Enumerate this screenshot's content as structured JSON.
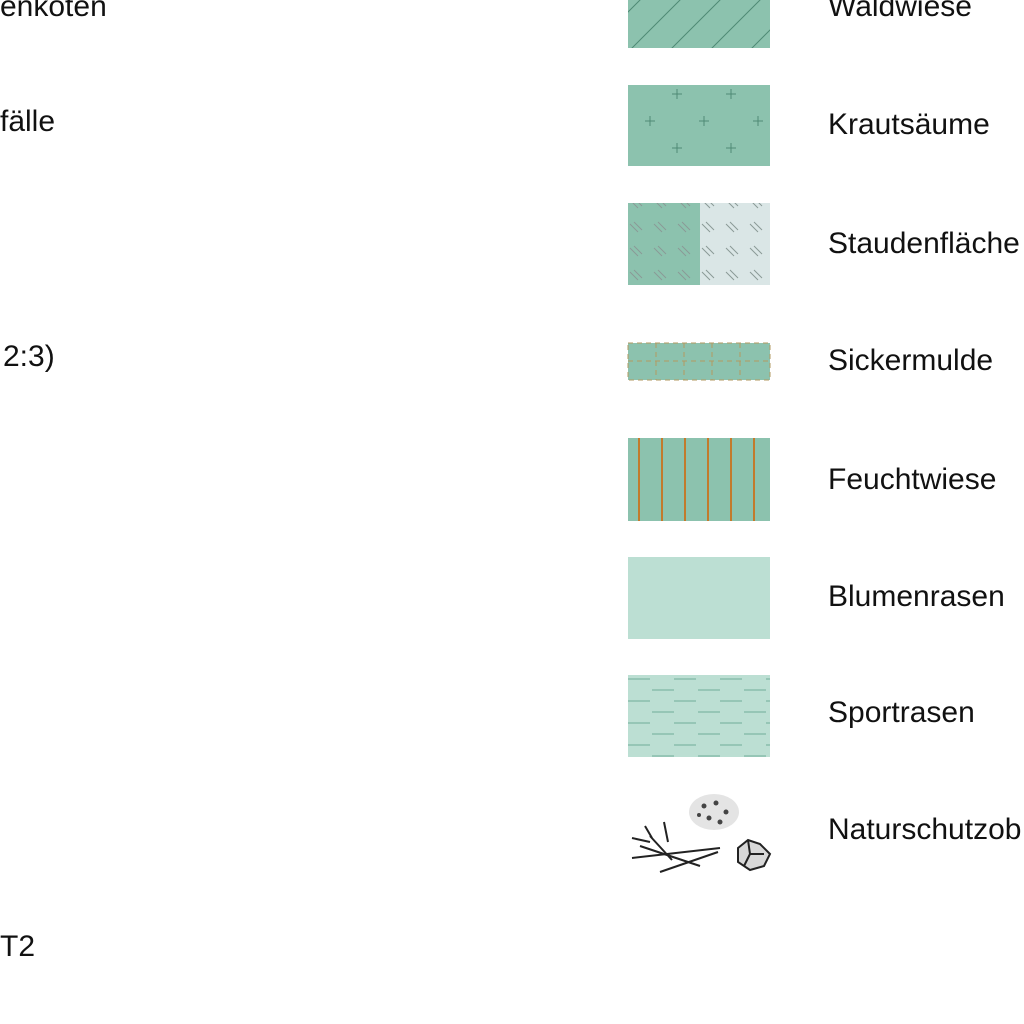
{
  "left_texts": [
    "enkoten",
    "fälle",
    "2:3)",
    "T2"
  ],
  "legend": [
    "Waldwiese",
    "Krautsäume",
    "Staudenfläche",
    "Sickermulde",
    "Feuchtwiese",
    "Blumenrasen",
    "Sportrasen",
    "Naturschutzob"
  ]
}
